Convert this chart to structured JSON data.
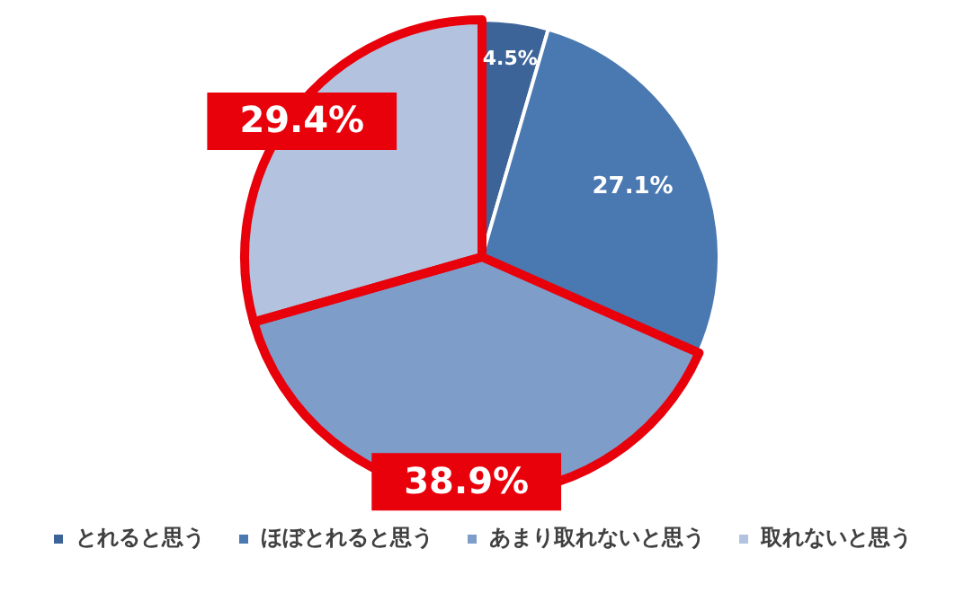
{
  "chart_data": {
    "type": "pie",
    "categories": [
      "とれると思う",
      "ほぼとれると思う",
      "あまり取れないと思う",
      "取れないと思う"
    ],
    "values": [
      4.5,
      27.1,
      38.9,
      29.4
    ],
    "colors": [
      "#3d6499",
      "#4a78b0",
      "#7f9dc9",
      "#b3c2de"
    ],
    "value_labels": [
      "4.5%",
      "27.1%",
      null,
      null
    ],
    "annotations": [
      {
        "text": "38.9%",
        "x": "あまり取れないと思う"
      },
      {
        "text": "29.4%",
        "x": "取れないと思う"
      }
    ],
    "legend": "bottom"
  }
}
